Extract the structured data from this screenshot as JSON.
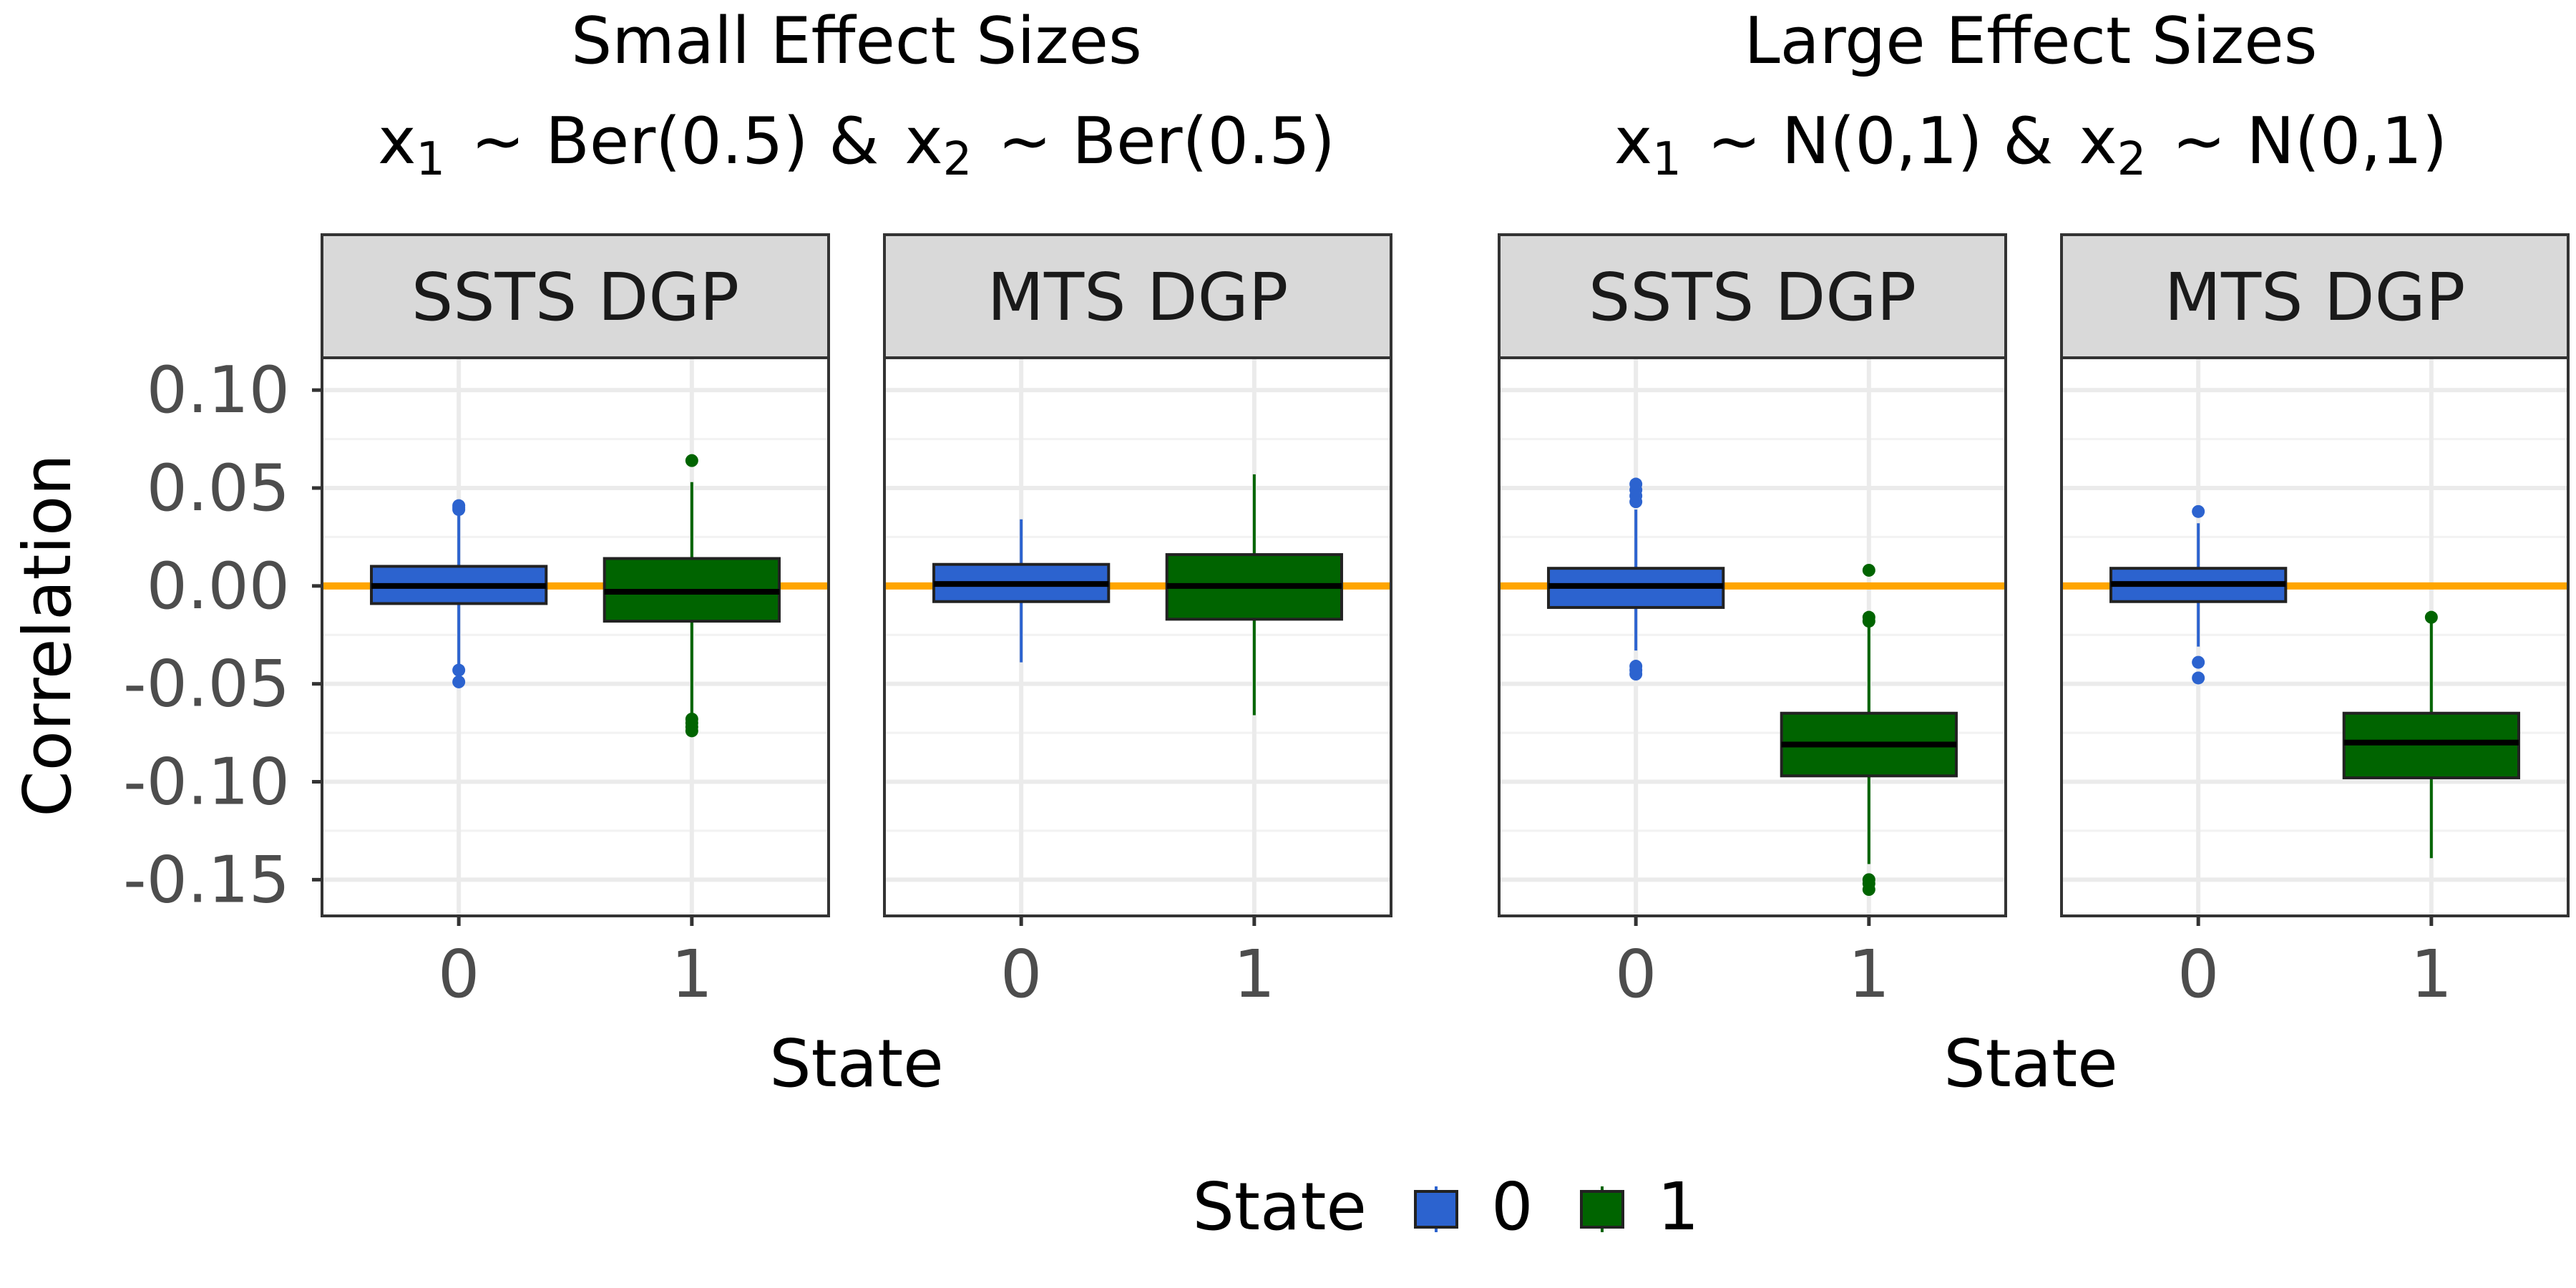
{
  "chart_data": {
    "type": "boxplot",
    "ylabel": "Correlation",
    "xlabel": "State",
    "ylim": [
      -0.1685,
      0.1165
    ],
    "y_ticks": [
      0.1,
      0.05,
      0.0,
      -0.05,
      -0.1,
      -0.15
    ],
    "y_tick_labels": [
      "0.10",
      "0.05",
      "0.00",
      "-0.05",
      "-0.10",
      "-0.15"
    ],
    "y_minor_ticks": [
      0.075,
      0.025,
      -0.025,
      -0.075,
      -0.125
    ],
    "categories": [
      "0",
      "1"
    ],
    "reference_line": {
      "y": 0,
      "color": "#FFA500"
    },
    "state_colors": {
      "0": "#2C63CF",
      "1": "#006400"
    },
    "legend": {
      "title": "State",
      "position": "bottom",
      "entries": [
        "0",
        "1"
      ]
    },
    "groups": [
      {
        "title": "Small Effect Sizes",
        "subtitle": {
          "x1_var": "x",
          "x1_sub": "1",
          "x1_dist": "~ Ber(0.5) &",
          "x2_var": "x",
          "x2_sub": "2",
          "x2_dist": "~ Ber(0.5)"
        },
        "xlabel": "State",
        "panels": [
          {
            "title": "SSTS DGP",
            "boxes": [
              {
                "state": "0",
                "whisker_low": -0.04,
                "q1": -0.009,
                "median": 0.0,
                "q3": 0.01,
                "whisker_high": 0.038,
                "outliers": [
                  0.039,
                  0.04,
                  0.041,
                  -0.043,
                  -0.049
                ]
              },
              {
                "state": "1",
                "whisker_low": -0.065,
                "q1": -0.018,
                "median": -0.003,
                "q3": 0.014,
                "whisker_high": 0.053,
                "outliers": [
                  0.064,
                  -0.068,
                  -0.07,
                  -0.072,
                  -0.074
                ]
              }
            ]
          },
          {
            "title": "MTS DGP",
            "boxes": [
              {
                "state": "0",
                "whisker_low": -0.039,
                "q1": -0.008,
                "median": 0.001,
                "q3": 0.011,
                "whisker_high": 0.034,
                "outliers": []
              },
              {
                "state": "1",
                "whisker_low": -0.066,
                "q1": -0.017,
                "median": 0.0,
                "q3": 0.016,
                "whisker_high": 0.057,
                "outliers": []
              }
            ]
          }
        ]
      },
      {
        "title": "Large Effect Sizes",
        "subtitle": {
          "x1_var": "x",
          "x1_sub": "1",
          "x1_dist": "~ N(0,1) &",
          "x2_var": "x",
          "x2_sub": "2",
          "x2_dist": "~ N(0,1)"
        },
        "xlabel": "State",
        "panels": [
          {
            "title": "SSTS DGP",
            "boxes": [
              {
                "state": "0",
                "whisker_low": -0.033,
                "q1": -0.011,
                "median": 0.0,
                "q3": 0.009,
                "whisker_high": 0.039,
                "outliers": [
                  0.043,
                  0.046,
                  0.049,
                  0.052,
                  -0.041,
                  -0.043,
                  -0.045
                ]
              },
              {
                "state": "1",
                "whisker_low": -0.142,
                "q1": -0.097,
                "median": -0.081,
                "q3": -0.065,
                "whisker_high": -0.019,
                "outliers": [
                  0.008,
                  -0.016,
                  -0.018,
                  -0.15,
                  -0.152,
                  -0.155
                ]
              }
            ]
          },
          {
            "title": "MTS DGP",
            "boxes": [
              {
                "state": "0",
                "whisker_low": -0.031,
                "q1": -0.008,
                "median": 0.001,
                "q3": 0.009,
                "whisker_high": 0.032,
                "outliers": [
                  0.038,
                  -0.039,
                  -0.047
                ]
              },
              {
                "state": "1",
                "whisker_low": -0.139,
                "q1": -0.098,
                "median": -0.08,
                "q3": -0.065,
                "whisker_high": -0.017,
                "outliers": [
                  -0.016
                ]
              }
            ]
          }
        ]
      }
    ]
  }
}
